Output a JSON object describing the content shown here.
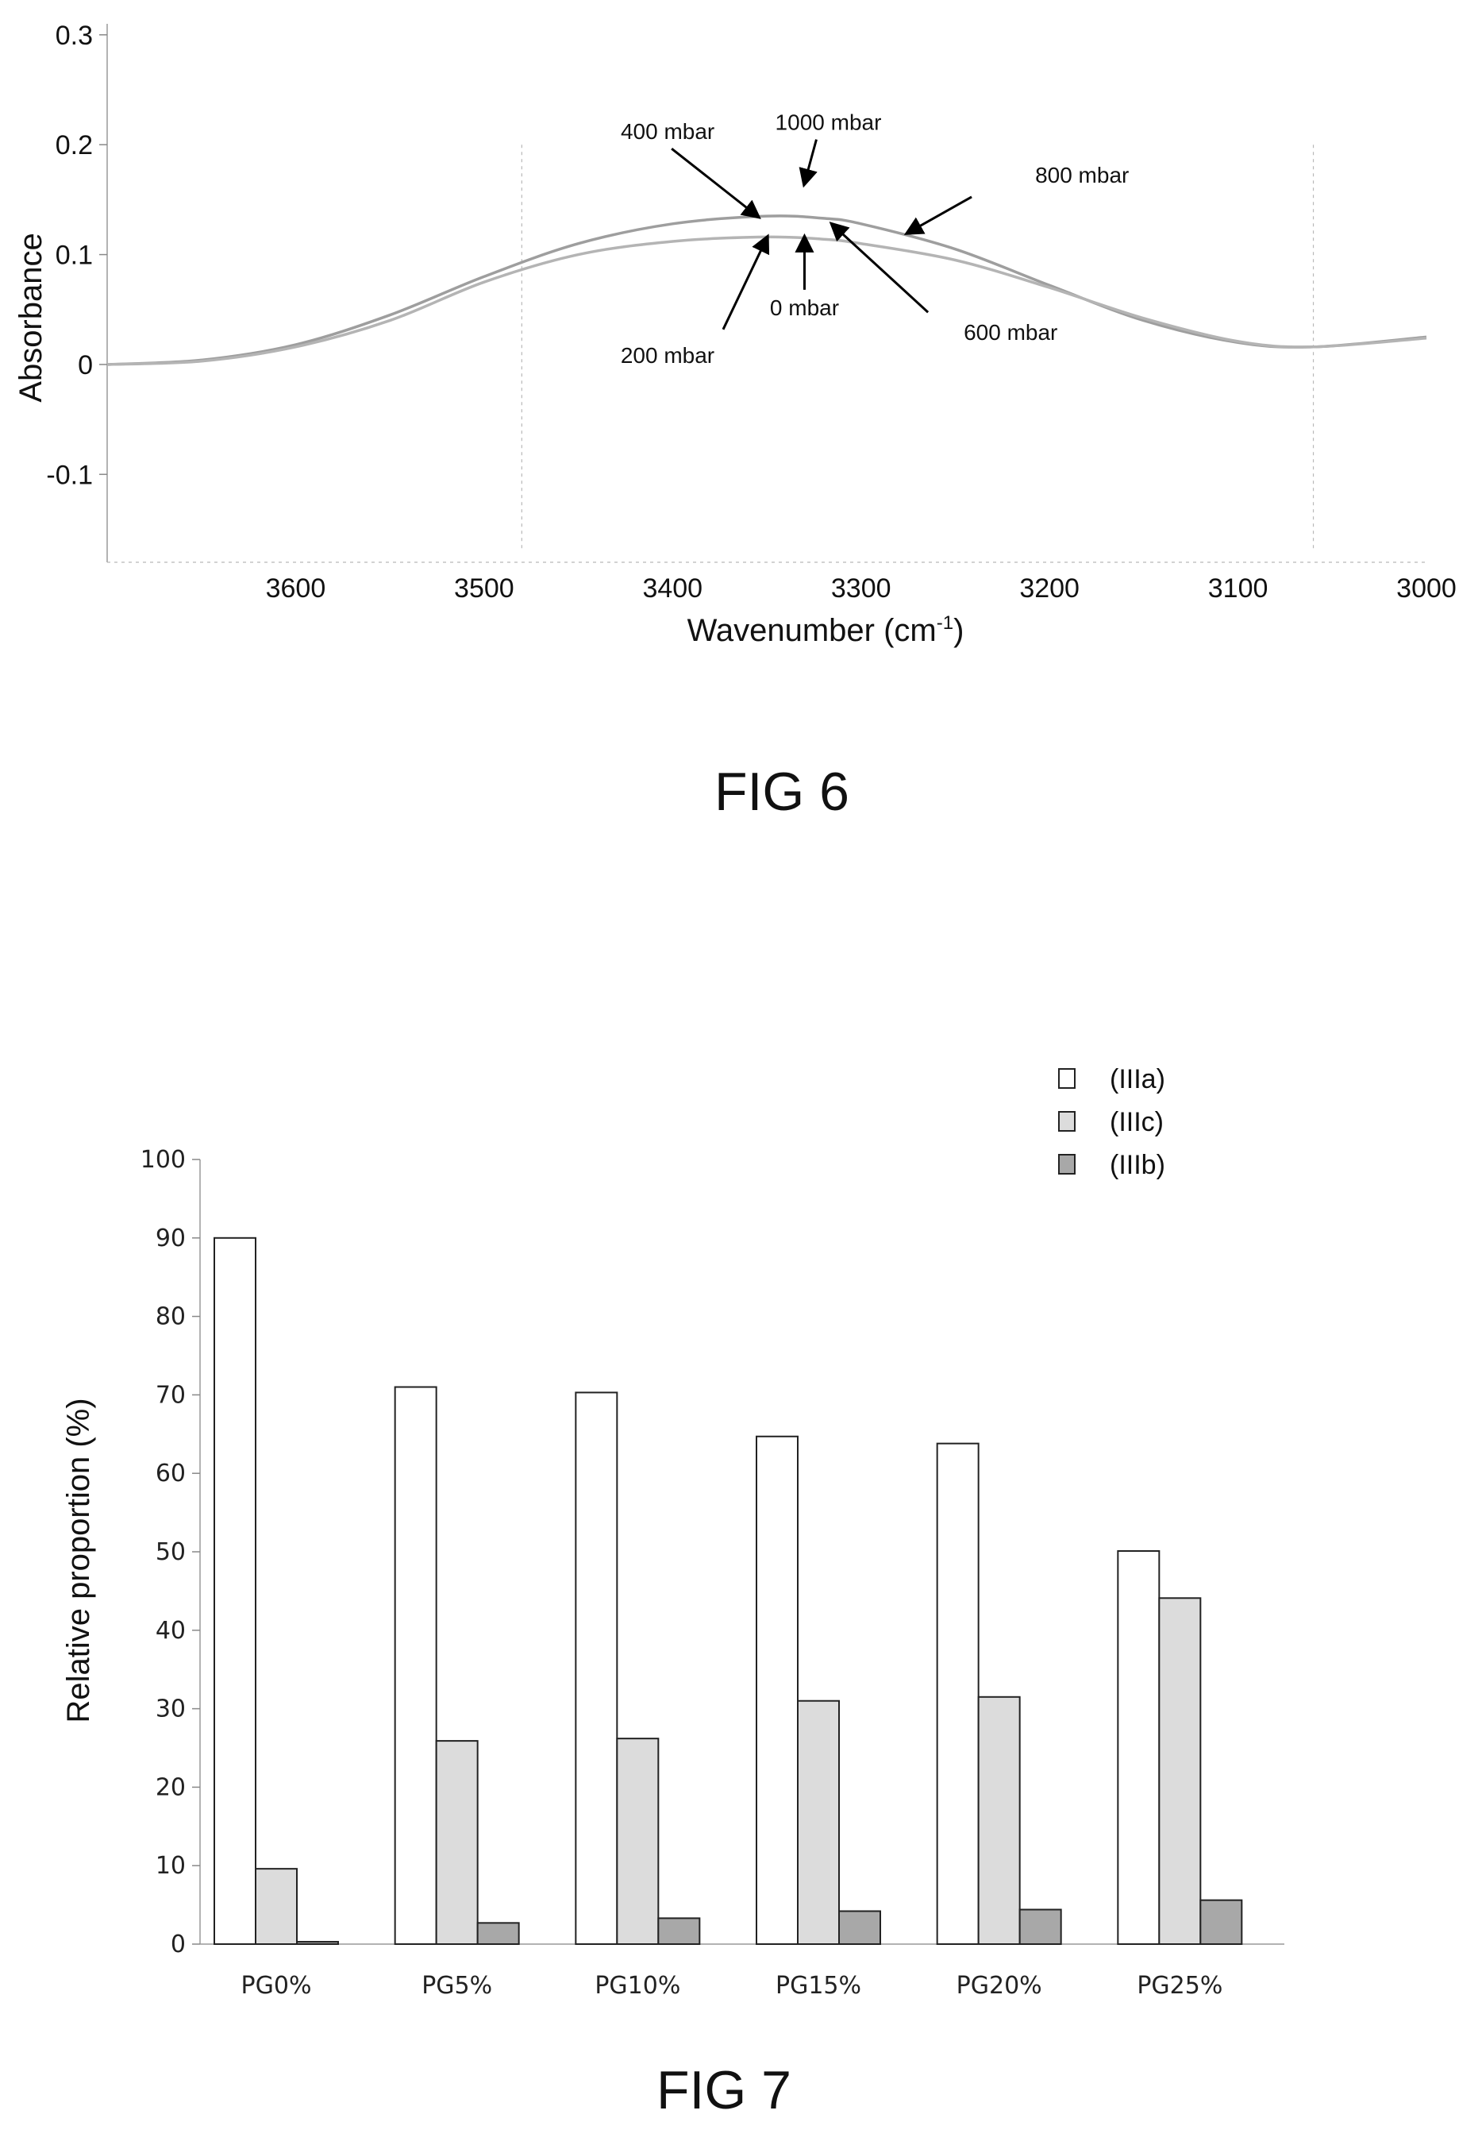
{
  "chart_data": [
    {
      "type": "line",
      "caption": "FIG 6",
      "xlabel": "Wavenumber (cm",
      "xlabel_sup": "-1",
      "xlabel_close": ")",
      "ylabel": "Absorbance",
      "xlim": [
        3700,
        3000
      ],
      "ylim": [
        -0.18,
        0.31
      ],
      "xticks": [
        3600,
        3500,
        3400,
        3300,
        3200,
        3100,
        3000
      ],
      "yticks": [
        0.3,
        0.2,
        0.1,
        0,
        -0.1
      ],
      "ytick_labels": [
        "0.3",
        "0.2",
        "0.1",
        "0",
        "-0.1"
      ],
      "series": [
        {
          "x": [
            3700,
            3650,
            3600,
            3550,
            3500,
            3450,
            3400,
            3350,
            3320,
            3300,
            3250,
            3200,
            3150,
            3100,
            3060,
            3000
          ],
          "y": [
            0,
            0.004,
            0.018,
            0.045,
            0.08,
            0.11,
            0.128,
            0.135,
            0.133,
            0.128,
            0.105,
            0.072,
            0.04,
            0.02,
            0.016,
            0.025
          ]
        },
        {
          "x": [
            3700,
            3650,
            3600,
            3550,
            3500,
            3450,
            3400,
            3350,
            3320,
            3300,
            3250,
            3200,
            3150,
            3100,
            3060,
            3000
          ],
          "y": [
            0,
            0.003,
            0.016,
            0.04,
            0.075,
            0.1,
            0.112,
            0.116,
            0.114,
            0.11,
            0.095,
            0.07,
            0.042,
            0.021,
            0.016,
            0.024
          ]
        }
      ],
      "annotations": [
        {
          "text": "400 mbar",
          "x": 3355,
          "y": 0.135
        },
        {
          "text": "1000 mbar",
          "x": 3330,
          "y": 0.165
        },
        {
          "text": "800 mbar",
          "x": 3275,
          "y": 0.12
        },
        {
          "text": "200 mbar",
          "x": 3350,
          "y": 0.115
        },
        {
          "text": "0 mbar",
          "x": 3330,
          "y": 0.115
        },
        {
          "text": "600 mbar",
          "x": 3315,
          "y": 0.127
        }
      ]
    },
    {
      "type": "bar",
      "caption": "FIG 7",
      "ylabel": "Relative proportion (%)",
      "ylim": [
        0,
        100
      ],
      "yticks": [
        0,
        10,
        20,
        30,
        40,
        50,
        60,
        70,
        80,
        90,
        100
      ],
      "categories": [
        "PG0%",
        "PG5%",
        "PG10%",
        "PG15%",
        "PG20%",
        "PG25%"
      ],
      "series": [
        {
          "name": "(IIIa)",
          "color": "#ffffff",
          "values": [
            90,
            71,
            70.3,
            64.7,
            63.8,
            50.1
          ]
        },
        {
          "name": "(IIIc)",
          "color": "#dcdcdc",
          "values": [
            9.6,
            25.9,
            26.2,
            31,
            31.5,
            44.1
          ]
        },
        {
          "name": "(IIIb)",
          "color": "#a8a8a8",
          "values": [
            0.3,
            2.7,
            3.3,
            4.2,
            4.4,
            5.6
          ]
        }
      ],
      "legend_position": "top-right"
    }
  ]
}
